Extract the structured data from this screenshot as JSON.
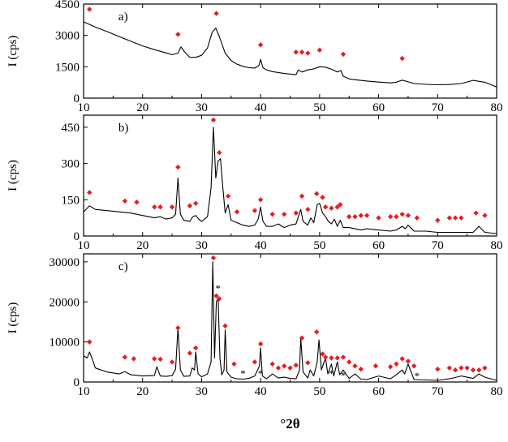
{
  "chart_data": [
    {
      "type": "line",
      "panel_label": "a)",
      "ylabel": "I (cps)",
      "xlim": [
        10,
        80
      ],
      "ylim": [
        0,
        4500
      ],
      "xticks": [
        10,
        20,
        30,
        40,
        50,
        60,
        70,
        80
      ],
      "yticks": [
        0,
        1500,
        3000,
        4500
      ],
      "ytick_labels": [
        "0",
        "1500",
        "3000",
        "4500"
      ],
      "series": [
        {
          "color": "#000000",
          "x": [
            10,
            12,
            14,
            16,
            18,
            20,
            22,
            24,
            25,
            26,
            26.5,
            27,
            28,
            29,
            30,
            31,
            31.8,
            32.4,
            33,
            34,
            35,
            36,
            37,
            38,
            39,
            39.7,
            40,
            40.4,
            41,
            42,
            44,
            46,
            46.4,
            47,
            48,
            49,
            50,
            51,
            52,
            53,
            53.6,
            54,
            55,
            56,
            58,
            60,
            62,
            63,
            64,
            65,
            66,
            68,
            70,
            72,
            74,
            76,
            78,
            80
          ],
          "y": [
            3650,
            3400,
            3180,
            2950,
            2720,
            2500,
            2320,
            2160,
            2080,
            2150,
            2450,
            2250,
            1950,
            1950,
            2050,
            2400,
            3150,
            3350,
            2950,
            2150,
            1800,
            1620,
            1520,
            1460,
            1440,
            1550,
            1850,
            1450,
            1350,
            1270,
            1180,
            1120,
            1350,
            1250,
            1350,
            1400,
            1500,
            1480,
            1380,
            1250,
            1320,
            1050,
            920,
            880,
            820,
            770,
            730,
            760,
            860,
            780,
            700,
            660,
            640,
            650,
            700,
            850,
            760,
            530
          ]
        }
      ],
      "markers": {
        "symbol": "diamond",
        "color": "#e31e24",
        "points": [
          [
            11,
            4250
          ],
          [
            26,
            3050
          ],
          [
            32.5,
            4050
          ],
          [
            40,
            2550
          ],
          [
            46,
            2200
          ],
          [
            47,
            2200
          ],
          [
            48,
            2150
          ],
          [
            50,
            2300
          ],
          [
            54,
            2100
          ],
          [
            64,
            1900
          ]
        ]
      },
      "asterisks": []
    },
    {
      "type": "line",
      "panel_label": "b)",
      "ylabel": "I (cps)",
      "xlim": [
        10,
        80
      ],
      "ylim": [
        0,
        500
      ],
      "xticks": [
        10,
        20,
        30,
        40,
        50,
        60,
        70,
        80
      ],
      "yticks": [
        0,
        150,
        300,
        450
      ],
      "ytick_labels": [
        "0",
        "150",
        "300",
        "450"
      ],
      "series": [
        {
          "color": "#000000",
          "x": [
            10,
            11,
            12,
            14,
            16,
            18,
            20,
            22,
            23,
            24,
            25,
            25.6,
            26,
            26.4,
            27,
            28,
            28.5,
            29,
            29.5,
            30,
            31,
            31.6,
            32,
            32.4,
            32.8,
            33.2,
            33.6,
            34,
            34.5,
            35,
            36,
            37,
            38,
            39,
            39.6,
            40,
            40.4,
            41,
            42,
            43,
            44,
            45,
            46,
            46.8,
            47.2,
            48,
            48.5,
            49,
            49.6,
            50,
            50.5,
            51,
            51.5,
            52,
            52.5,
            53,
            53.5,
            54,
            55,
            56,
            57,
            58,
            60,
            62,
            63,
            64,
            64.5,
            65,
            66,
            68,
            70,
            72,
            74,
            76,
            77,
            78,
            80
          ],
          "y": [
            100,
            125,
            110,
            105,
            100,
            95,
            85,
            75,
            80,
            70,
            75,
            90,
            240,
            90,
            65,
            60,
            80,
            85,
            70,
            60,
            80,
            200,
            450,
            240,
            310,
            320,
            200,
            95,
            130,
            65,
            55,
            45,
            40,
            45,
            70,
            120,
            60,
            40,
            40,
            50,
            35,
            45,
            50,
            110,
            60,
            45,
            75,
            55,
            130,
            135,
            95,
            80,
            60,
            50,
            70,
            40,
            65,
            35,
            35,
            30,
            25,
            30,
            25,
            20,
            25,
            40,
            30,
            45,
            20,
            20,
            15,
            15,
            15,
            15,
            40,
            15,
            10
          ]
        }
      ],
      "markers": {
        "symbol": "diamond",
        "color": "#e31e24",
        "points": [
          [
            11,
            180
          ],
          [
            17,
            145
          ],
          [
            19,
            140
          ],
          [
            22,
            120
          ],
          [
            23,
            120
          ],
          [
            25,
            120
          ],
          [
            26,
            285
          ],
          [
            28,
            125
          ],
          [
            29,
            135
          ],
          [
            32,
            480
          ],
          [
            33,
            345
          ],
          [
            34.5,
            165
          ],
          [
            36,
            100
          ],
          [
            39,
            105
          ],
          [
            40,
            150
          ],
          [
            42,
            90
          ],
          [
            44,
            90
          ],
          [
            46,
            95
          ],
          [
            47,
            165
          ],
          [
            48,
            110
          ],
          [
            49.5,
            175
          ],
          [
            50.5,
            160
          ],
          [
            51,
            120
          ],
          [
            52,
            115
          ],
          [
            53,
            120
          ],
          [
            53.5,
            130
          ],
          [
            55,
            80
          ],
          [
            56,
            80
          ],
          [
            57,
            85
          ],
          [
            58,
            85
          ],
          [
            60,
            75
          ],
          [
            62,
            80
          ],
          [
            63,
            80
          ],
          [
            64,
            90
          ],
          [
            65,
            85
          ],
          [
            66.5,
            75
          ],
          [
            70,
            65
          ],
          [
            72,
            75
          ],
          [
            73,
            75
          ],
          [
            74,
            75
          ],
          [
            76.5,
            95
          ],
          [
            78,
            85
          ]
        ]
      },
      "asterisks": []
    },
    {
      "type": "line",
      "panel_label": "c)",
      "ylabel": "I (cps)",
      "xlabel": "°2θ",
      "xlim": [
        10,
        80
      ],
      "ylim": [
        0,
        32000
      ],
      "xticks": [
        10,
        20,
        30,
        40,
        50,
        60,
        70,
        80
      ],
      "yticks": [
        0,
        10000,
        20000,
        30000
      ],
      "ytick_labels": [
        "0",
        "10000",
        "20000",
        "30000"
      ],
      "series": [
        {
          "color": "#000000",
          "x": [
            10,
            10.6,
            11,
            11.4,
            12,
            14,
            16,
            17,
            18,
            20,
            22,
            22.4,
            23,
            24,
            25,
            25.6,
            26,
            26.4,
            27,
            28,
            28.4,
            28.8,
            29,
            29.4,
            30,
            31,
            31.6,
            31.9,
            32.2,
            32.5,
            32.8,
            33.1,
            33.4,
            33.8,
            34,
            34.3,
            35,
            36,
            37,
            38,
            39,
            39.8,
            40,
            40.3,
            41,
            42,
            43,
            44,
            45,
            46,
            46.6,
            46.8,
            47.2,
            48,
            48.4,
            49,
            49.6,
            49.9,
            50.3,
            51,
            51.4,
            52,
            52.4,
            53,
            53.4,
            54,
            55,
            56,
            57,
            58,
            60,
            62,
            63,
            64,
            64.4,
            65,
            66,
            68,
            70,
            72,
            74,
            76,
            77,
            78,
            80
          ],
          "y": [
            6500,
            6000,
            7500,
            6000,
            3500,
            2500,
            2000,
            2600,
            1800,
            1500,
            1600,
            3800,
            1500,
            1400,
            1600,
            3200,
            13500,
            3000,
            1400,
            1500,
            3500,
            3000,
            7500,
            2000,
            1300,
            2000,
            5000,
            30000,
            6000,
            20000,
            21000,
            6000,
            1800,
            3000,
            13000,
            2500,
            1200,
            800,
            700,
            900,
            1500,
            4000,
            8500,
            1500,
            800,
            2000,
            1000,
            1200,
            900,
            800,
            3000,
            11000,
            2500,
            1000,
            3000,
            1500,
            5000,
            10500,
            3000,
            6000,
            2000,
            4500,
            1500,
            5000,
            1800,
            3000,
            900,
            2000,
            700,
            600,
            1500,
            800,
            1800,
            3000,
            2000,
            4500,
            600,
            500,
            400,
            800,
            1500,
            900,
            2000,
            1200,
            400
          ]
        }
      ],
      "markers": {
        "symbol": "diamond",
        "color": "#e31e24",
        "points": [
          [
            11,
            10000
          ],
          [
            17,
            6200
          ],
          [
            18.5,
            5800
          ],
          [
            22,
            5800
          ],
          [
            23,
            5700
          ],
          [
            25,
            5000
          ],
          [
            26,
            13500
          ],
          [
            28,
            7200
          ],
          [
            29,
            8500
          ],
          [
            32,
            31000
          ],
          [
            32.5,
            21500
          ],
          [
            33,
            20800
          ],
          [
            34,
            14000
          ],
          [
            35.5,
            4500
          ],
          [
            39,
            5000
          ],
          [
            40,
            9500
          ],
          [
            42,
            4500
          ],
          [
            43,
            3500
          ],
          [
            44,
            4000
          ],
          [
            45,
            3500
          ],
          [
            46,
            4200
          ],
          [
            47,
            11000
          ],
          [
            48,
            4800
          ],
          [
            49.5,
            12500
          ],
          [
            50.5,
            7000
          ],
          [
            51,
            6200
          ],
          [
            52,
            6000
          ],
          [
            53,
            6000
          ],
          [
            54,
            6200
          ],
          [
            55,
            5000
          ],
          [
            56,
            4000
          ],
          [
            57,
            3200
          ],
          [
            59.5,
            4000
          ],
          [
            62,
            3800
          ],
          [
            63,
            4500
          ],
          [
            64,
            5800
          ],
          [
            65,
            5200
          ],
          [
            66,
            4000
          ],
          [
            70,
            3200
          ],
          [
            72,
            3500
          ],
          [
            73,
            3000
          ],
          [
            74,
            3500
          ],
          [
            75,
            3500
          ],
          [
            76,
            3000
          ],
          [
            77,
            3000
          ],
          [
            78,
            3500
          ]
        ]
      },
      "asterisks": {
        "symbol": "*",
        "points": [
          [
            32.8,
            23500
          ],
          [
            37,
            2200
          ],
          [
            40,
            2200
          ],
          [
            52,
            2200
          ],
          [
            54,
            1700
          ],
          [
            66.5,
            1600
          ]
        ]
      }
    }
  ]
}
